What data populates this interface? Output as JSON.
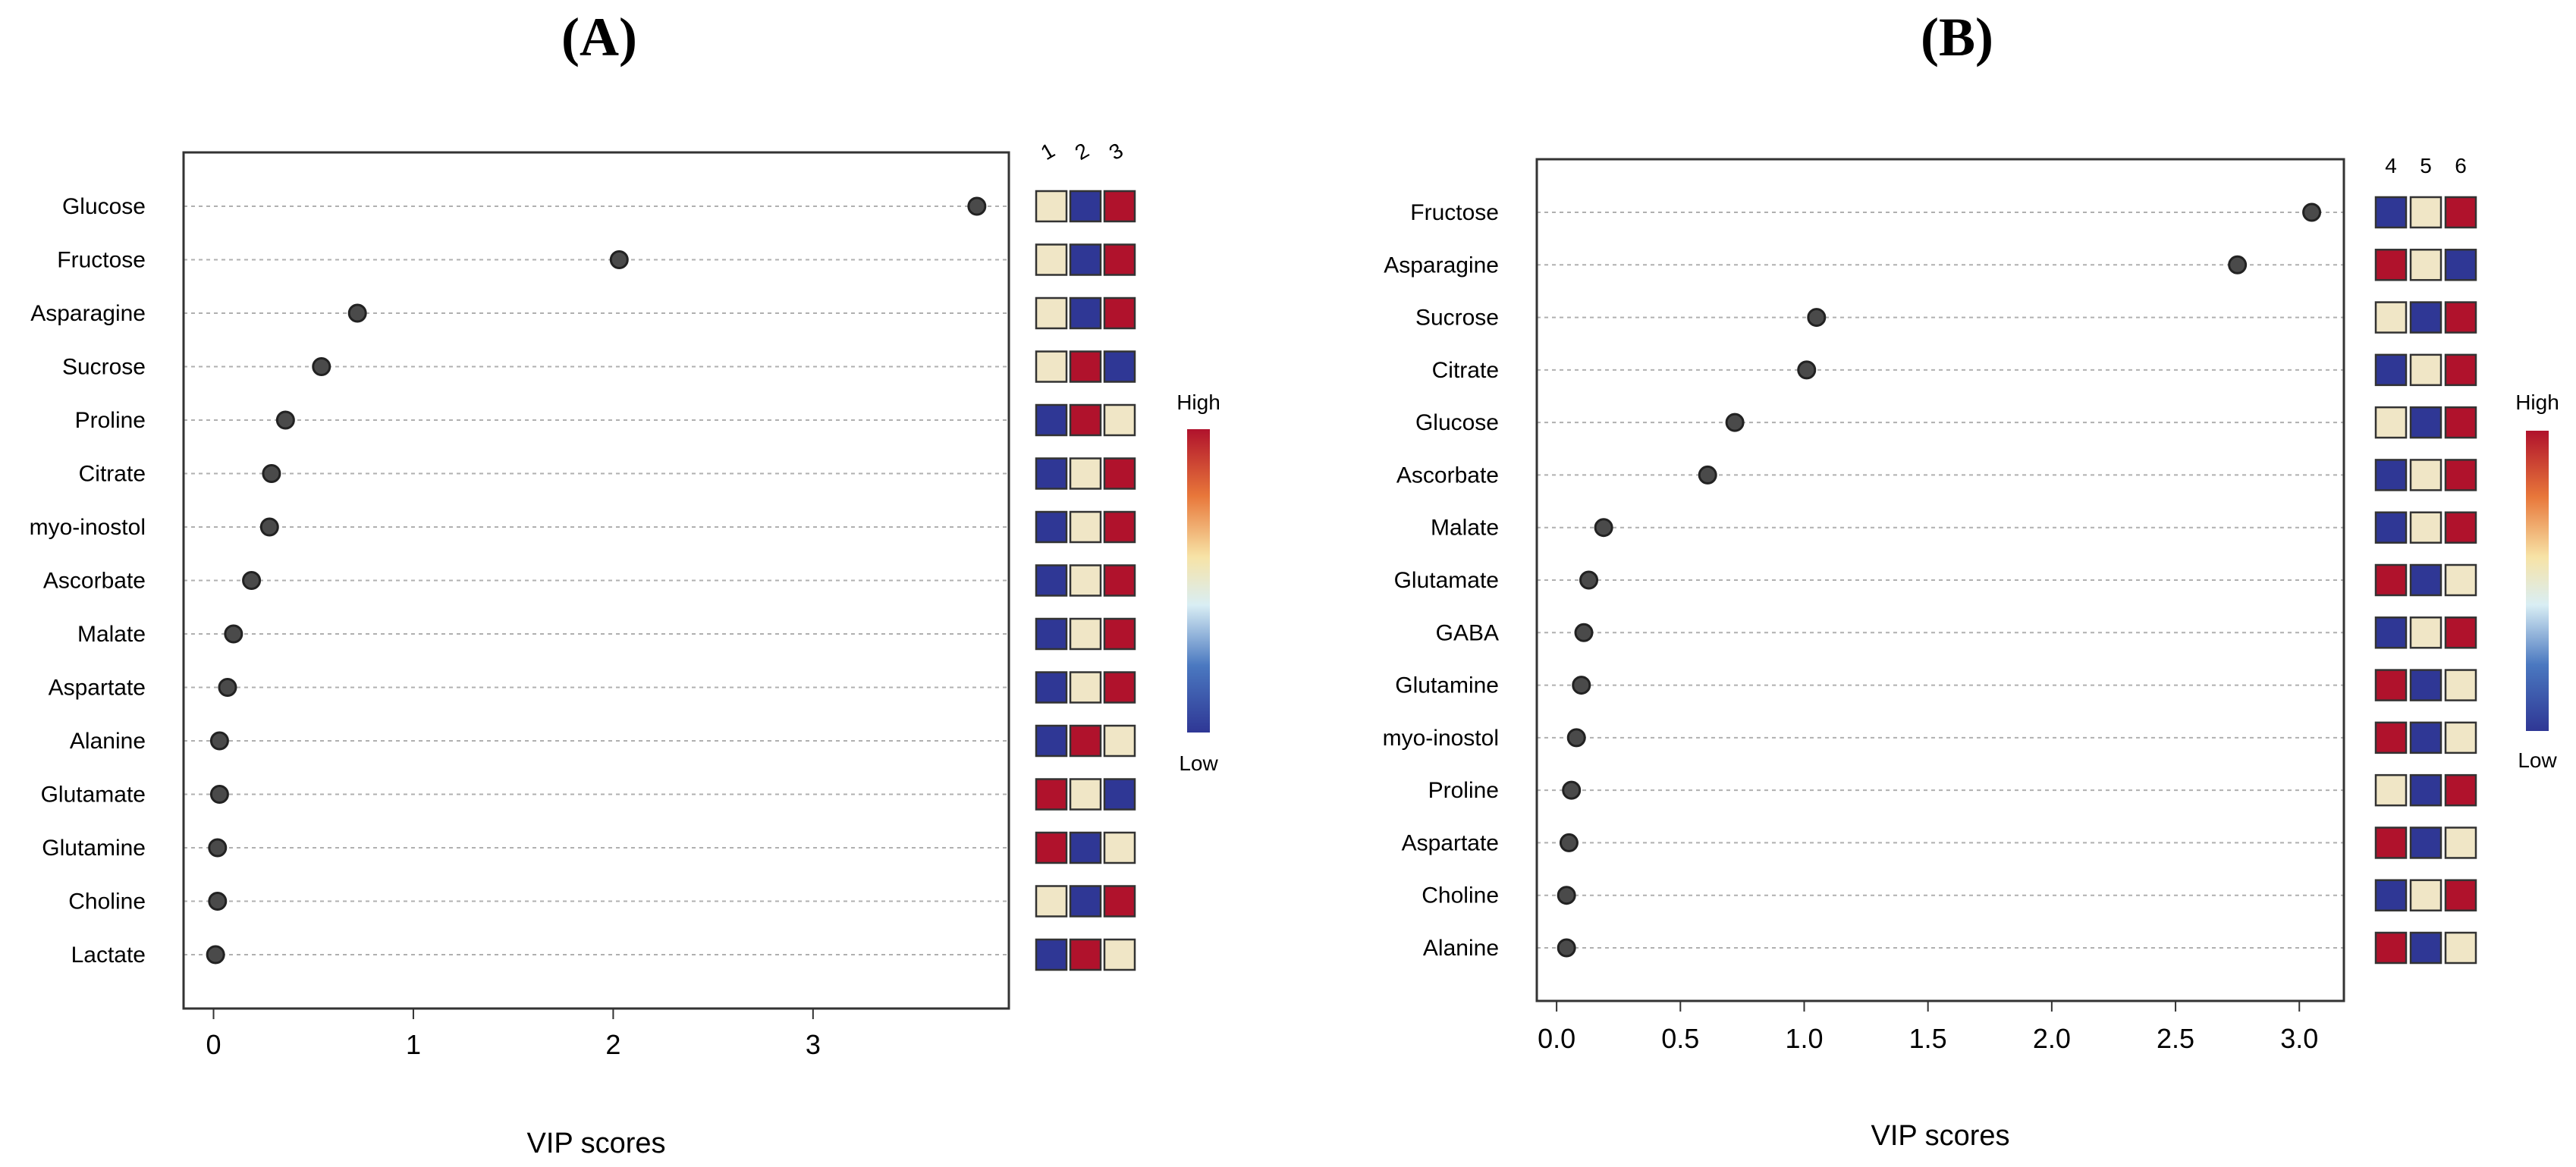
{
  "panels": [
    {
      "label": "(A)",
      "chart_data": {
        "type": "scatter",
        "title": "(A)",
        "xlabel": "VIP scores",
        "ylabel": "",
        "xlim": [
          -0.15,
          3.98
        ],
        "xticks": [
          0,
          1,
          2,
          3
        ],
        "xtick_labels": [
          "0",
          "1",
          "2",
          "3"
        ],
        "categories": [
          "Glucose",
          "Fructose",
          "Asparagine",
          "Sucrose",
          "Proline",
          "Citrate",
          "myo-inostol",
          "Ascorbate",
          "Malate",
          "Aspartate",
          "Alanine",
          "Glutamate",
          "Glutamine",
          "Choline",
          "Lactate"
        ],
        "values": [
          3.82,
          2.03,
          0.72,
          0.54,
          0.36,
          0.29,
          0.28,
          0.19,
          0.1,
          0.07,
          0.03,
          0.03,
          0.02,
          0.02,
          0.01
        ],
        "heatmap_columns": [
          "1",
          "2",
          "3"
        ],
        "heatmap_levels": [
          [
            "mid",
            "low",
            "high"
          ],
          [
            "mid",
            "low",
            "high"
          ],
          [
            "mid",
            "low",
            "high"
          ],
          [
            "mid",
            "high",
            "low"
          ],
          [
            "low",
            "high",
            "mid"
          ],
          [
            "low",
            "mid",
            "high"
          ],
          [
            "low",
            "mid",
            "high"
          ],
          [
            "low",
            "mid",
            "high"
          ],
          [
            "low",
            "mid",
            "high"
          ],
          [
            "low",
            "mid",
            "high"
          ],
          [
            "low",
            "high",
            "mid"
          ],
          [
            "high",
            "mid",
            "low"
          ],
          [
            "high",
            "low",
            "mid"
          ],
          [
            "mid",
            "low",
            "high"
          ],
          [
            "low",
            "high",
            "mid"
          ]
        ],
        "legend": {
          "high": "High",
          "low": "Low"
        }
      }
    },
    {
      "label": "(B)",
      "chart_data": {
        "type": "scatter",
        "title": "(B)",
        "xlabel": "VIP scores",
        "ylabel": "",
        "xlim": [
          -0.08,
          3.18
        ],
        "xticks": [
          0.0,
          0.5,
          1.0,
          1.5,
          2.0,
          2.5,
          3.0
        ],
        "xtick_labels": [
          "0.0",
          "0.5",
          "1.0",
          "1.5",
          "2.0",
          "2.5",
          "3.0"
        ],
        "categories": [
          "Fructose",
          "Asparagine",
          "Sucrose",
          "Citrate",
          "Glucose",
          "Ascorbate",
          "Malate",
          "Glutamate",
          "GABA",
          "Glutamine",
          "myo-inostol",
          "Proline",
          "Aspartate",
          "Choline",
          "Alanine"
        ],
        "values": [
          3.05,
          2.75,
          1.05,
          1.01,
          0.72,
          0.61,
          0.19,
          0.13,
          0.11,
          0.1,
          0.08,
          0.06,
          0.05,
          0.04,
          0.04
        ],
        "heatmap_columns": [
          "4",
          "5",
          "6"
        ],
        "heatmap_levels": [
          [
            "low",
            "mid",
            "high"
          ],
          [
            "high",
            "mid",
            "low"
          ],
          [
            "mid",
            "low",
            "high"
          ],
          [
            "low",
            "mid",
            "high"
          ],
          [
            "mid",
            "low",
            "high"
          ],
          [
            "low",
            "mid",
            "high"
          ],
          [
            "low",
            "mid",
            "high"
          ],
          [
            "high",
            "low",
            "mid"
          ],
          [
            "low",
            "mid",
            "high"
          ],
          [
            "high",
            "low",
            "mid"
          ],
          [
            "high",
            "low",
            "mid"
          ],
          [
            "mid",
            "low",
            "high"
          ],
          [
            "high",
            "low",
            "mid"
          ],
          [
            "low",
            "mid",
            "high"
          ],
          [
            "high",
            "low",
            "mid"
          ]
        ],
        "legend": {
          "high": "High",
          "low": "Low"
        }
      }
    }
  ],
  "colors": {
    "high": "#b0122c",
    "mid": "#f0e6c6",
    "low": "#2f3795",
    "point": "#4a4a4a",
    "gridline": "#b0b0b0",
    "axis": "#333333"
  }
}
